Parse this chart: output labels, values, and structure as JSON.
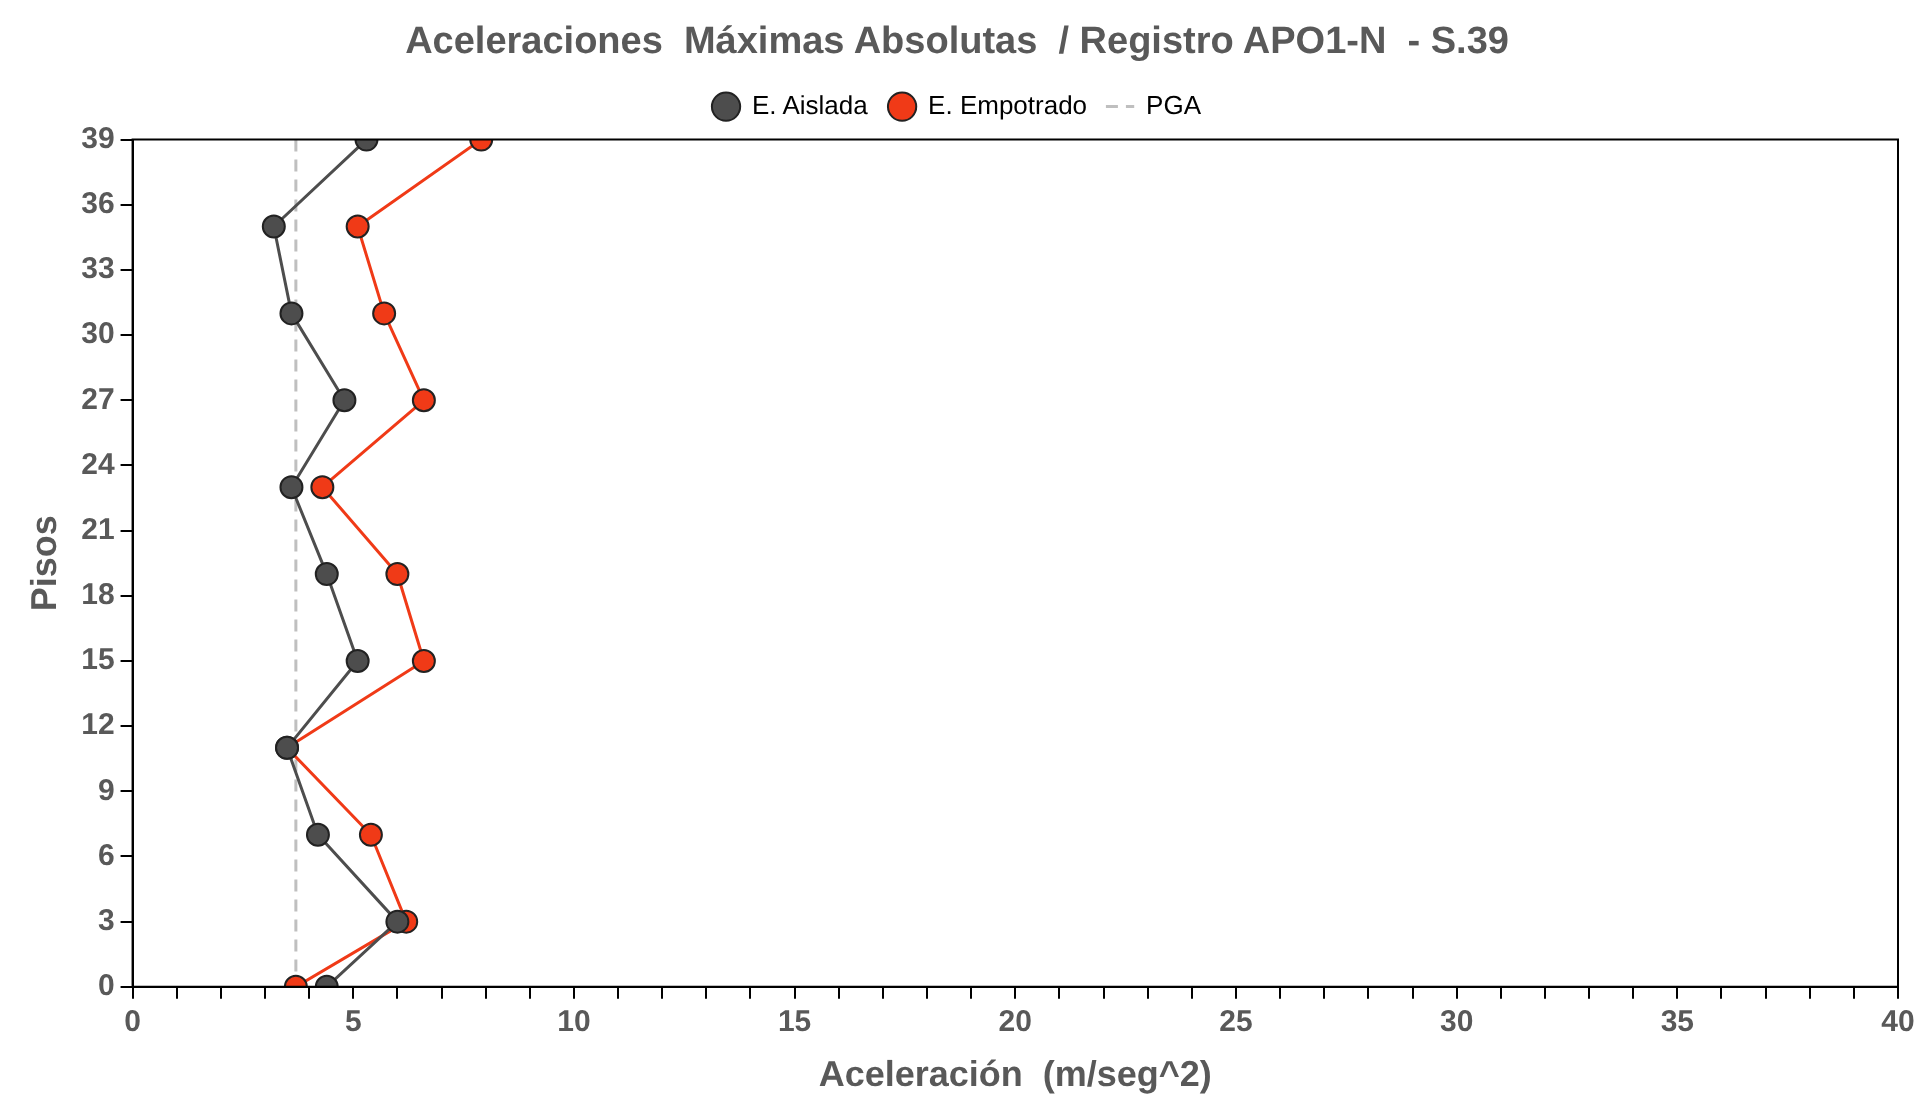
{
  "chart_data": {
    "type": "line",
    "title": "Aceleraciones  Máximas Absolutas  / Registro APO1-N  - S.39",
    "xlabel": "Aceleración  (m/seg^2)",
    "ylabel": "Pisos",
    "xlim": [
      0,
      40
    ],
    "xticks": [
      0,
      {
        "value": 1,
        "label": null
      },
      {
        "value": 2,
        "label": null
      },
      {
        "value": 3,
        "label": null
      },
      {
        "value": 4,
        "label": null
      },
      5,
      {
        "value": 6,
        "label": null
      },
      {
        "value": 7,
        "label": null
      },
      {
        "value": 8,
        "label": null
      },
      {
        "value": 9,
        "label": null
      },
      10,
      {
        "value": 11,
        "label": null
      },
      {
        "value": 12,
        "label": null
      },
      {
        "value": 13,
        "label": null
      },
      {
        "value": 14,
        "label": null
      },
      15,
      {
        "value": 16,
        "label": null
      },
      {
        "value": 17,
        "label": null
      },
      {
        "value": 18,
        "label": null
      },
      {
        "value": 19,
        "label": null
      },
      20,
      {
        "value": 21,
        "label": null
      },
      {
        "value": 22,
        "label": null
      },
      {
        "value": 23,
        "label": null
      },
      {
        "value": 24,
        "label": null
      },
      25,
      {
        "value": 26,
        "label": null
      },
      {
        "value": 27,
        "label": null
      },
      {
        "value": 28,
        "label": null
      },
      {
        "value": 29,
        "label": null
      },
      30,
      {
        "value": 31,
        "label": null
      },
      {
        "value": 32,
        "label": null
      },
      {
        "value": 33,
        "label": null
      },
      {
        "value": 34,
        "label": null
      },
      35,
      {
        "value": 36,
        "label": null
      },
      {
        "value": 37,
        "label": null
      },
      {
        "value": 38,
        "label": null
      },
      {
        "value": 39,
        "label": null
      },
      40
    ],
    "ylim": [
      0,
      39
    ],
    "yticks": [
      0,
      3,
      6,
      9,
      12,
      15,
      18,
      21,
      24,
      27,
      30,
      33,
      36,
      39
    ],
    "series": [
      {
        "name": "E. Aislada",
        "color": "#4d4d4d",
        "x": [
          4.4,
          6.0,
          4.2,
          3.5,
          5.1,
          4.4,
          3.6,
          4.8,
          3.6,
          3.2,
          5.3
        ],
        "values": [
          0,
          3,
          7,
          11,
          15,
          19,
          23,
          27,
          31,
          35,
          39
        ]
      },
      {
        "name": "E. Empotrado",
        "color": "#f03a17",
        "x": [
          3.7,
          6.2,
          5.4,
          3.5,
          6.6,
          6.0,
          4.3,
          6.6,
          5.7,
          5.1,
          7.9
        ],
        "values": [
          0,
          3,
          7,
          11,
          15,
          19,
          23,
          27,
          31,
          35,
          39
        ]
      }
    ],
    "ref_lines": [
      {
        "axis": "x",
        "value": 3.7,
        "label": "PGA",
        "color": "#bfbfbf",
        "line_style": "dashed"
      }
    ],
    "grid": false,
    "legend": "top",
    "marker": "circle",
    "line_style": "solid"
  }
}
